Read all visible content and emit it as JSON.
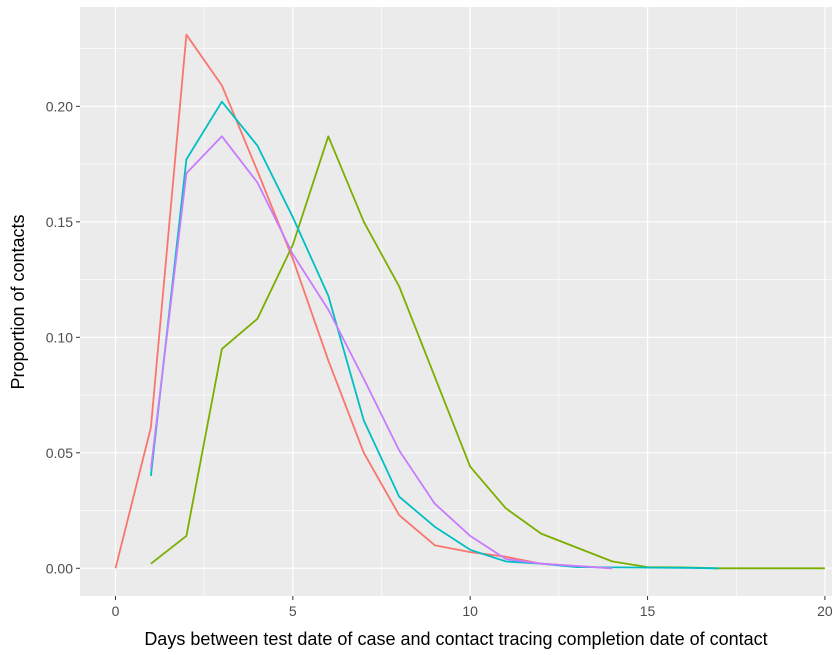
{
  "chart_data": {
    "type": "line",
    "title": "",
    "xlabel": "Days between test date of case and contact tracing completion date of contact",
    "ylabel": "Proportion of contacts",
    "xlim": [
      -1,
      20.2
    ],
    "ylim": [
      -0.012,
      0.243
    ],
    "x_ticks": [
      0,
      5,
      10,
      15,
      20
    ],
    "x_tick_labels": [
      "0",
      "5",
      "10",
      "15",
      "20"
    ],
    "y_ticks": [
      0,
      0.05,
      0.1,
      0.15,
      0.2
    ],
    "y_tick_labels": [
      "0.00",
      "0.05",
      "0.10",
      "0.15",
      "0.20"
    ],
    "grid": true,
    "legend": "none",
    "series": [
      {
        "color": "#F8766D",
        "x": [
          0,
          1,
          2,
          3,
          4,
          5,
          6,
          7,
          8,
          9,
          10,
          11,
          12,
          13,
          14
        ],
        "y": [
          0.0,
          0.061,
          0.231,
          0.209,
          0.172,
          0.134,
          0.09,
          0.05,
          0.023,
          0.01,
          0.007,
          0.005,
          0.002,
          0.001,
          0.0
        ]
      },
      {
        "color": "#7CAE00",
        "x": [
          1,
          2,
          3,
          4,
          5,
          6,
          7,
          8,
          9,
          10,
          11,
          12,
          13,
          14,
          15,
          16,
          17,
          18,
          19,
          20
        ],
        "y": [
          0.002,
          0.014,
          0.095,
          0.108,
          0.14,
          0.187,
          0.15,
          0.122,
          0.083,
          0.044,
          0.026,
          0.015,
          0.009,
          0.003,
          0.0005,
          0.0004,
          0.0,
          0.0,
          0.0,
          0.0
        ]
      },
      {
        "color": "#00BFC4",
        "x": [
          1,
          2,
          3,
          4,
          5,
          6,
          7,
          8,
          9,
          10,
          11,
          12,
          13,
          14,
          15,
          16,
          17
        ],
        "y": [
          0.04,
          0.177,
          0.202,
          0.183,
          0.152,
          0.118,
          0.064,
          0.031,
          0.018,
          0.008,
          0.003,
          0.002,
          0.0005,
          0.0004,
          0.0003,
          0.0002,
          0.0
        ]
      },
      {
        "color": "#C77CFF",
        "x": [
          1,
          2,
          3,
          4,
          5,
          6,
          7,
          8,
          9,
          10,
          11,
          12,
          13,
          14
        ],
        "y": [
          0.043,
          0.171,
          0.187,
          0.167,
          0.136,
          0.112,
          0.082,
          0.051,
          0.028,
          0.014,
          0.004,
          0.002,
          0.001,
          0.0
        ]
      }
    ]
  }
}
